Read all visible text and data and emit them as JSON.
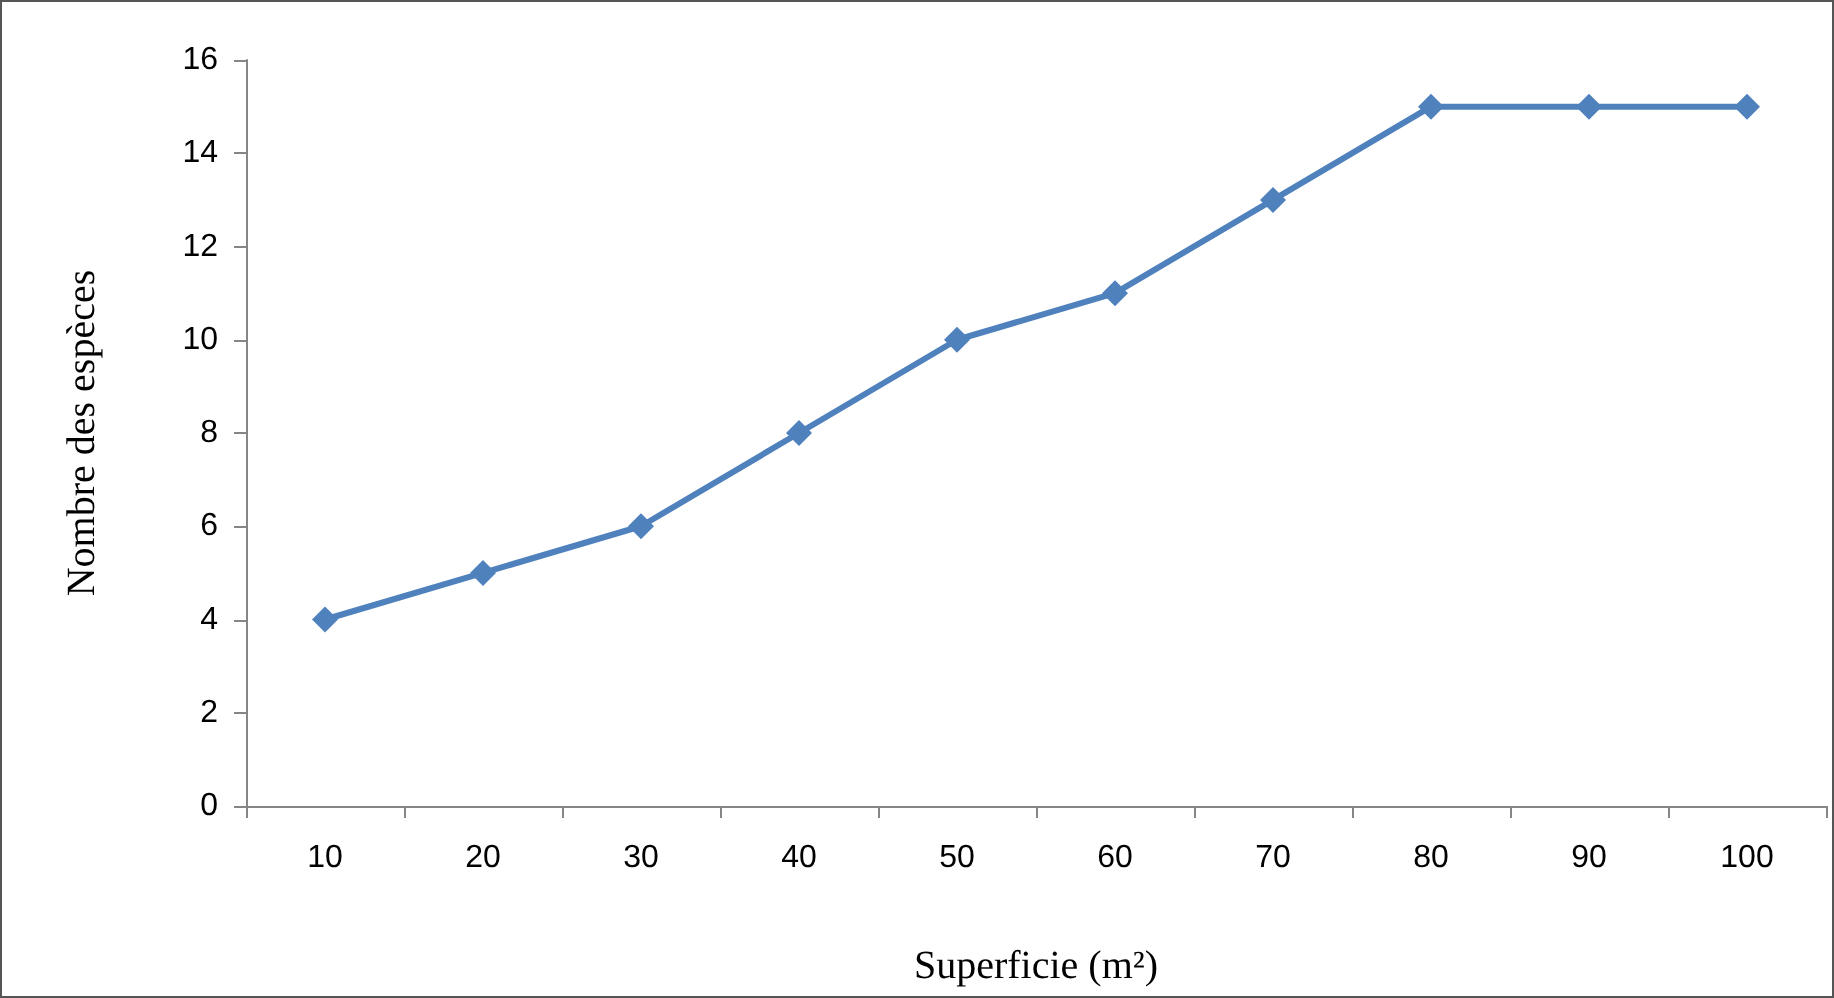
{
  "chart_data": {
    "type": "line",
    "xlabel": "Superficie (m²)",
    "ylabel": "Nombre des espèces",
    "categories": [
      "10",
      "20",
      "30",
      "40",
      "50",
      "60",
      "70",
      "80",
      "90",
      "100"
    ],
    "series": [
      {
        "color": "#4f81bd",
        "values": [
          4,
          5,
          6,
          8,
          10,
          11,
          13,
          15,
          15,
          15
        ]
      }
    ],
    "ylim": [
      0,
      16
    ],
    "yticks": [
      0,
      2,
      4,
      6,
      8,
      10,
      12,
      14,
      16
    ],
    "grid": false,
    "marker": "diamond",
    "line_style": "solid"
  }
}
